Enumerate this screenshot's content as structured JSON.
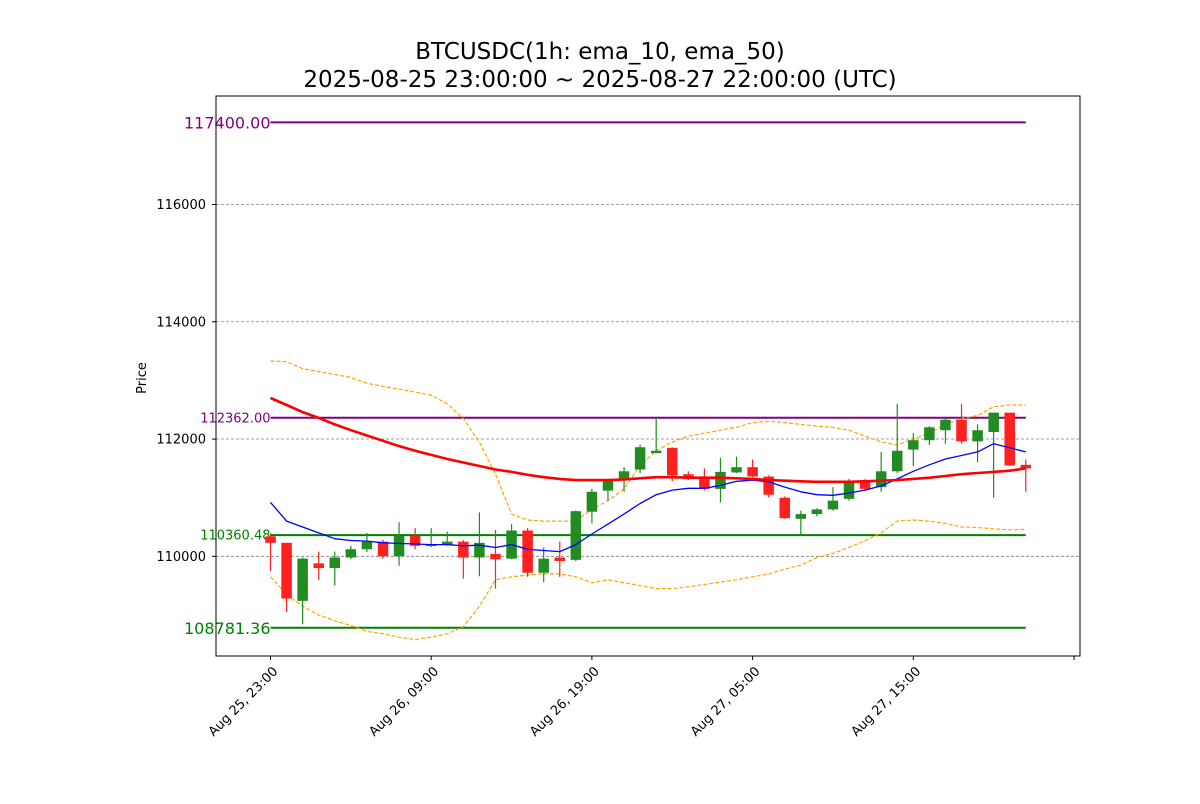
{
  "chart_data": {
    "type": "candlestick",
    "title_line1": "BTCUSDC(1h: ema_10, ema_50)",
    "title_line2": "2025-08-25 23:00:00 ~ 2025-08-27 22:00:00 (UTC)",
    "ylabel": "Price",
    "ylim": [
      108300,
      117850
    ],
    "y_ticks": [
      110000,
      112000,
      114000,
      116000
    ],
    "y_tick_labels": [
      "110000",
      "112000",
      "114000",
      "116000"
    ],
    "x_ticks": [
      0,
      10,
      20,
      30,
      40,
      50
    ],
    "x_tick_labels": [
      "Aug 25, 23:00",
      "Aug 26, 09:00",
      "Aug 26, 19:00",
      "Aug 27, 05:00",
      "Aug 27, 15:00",
      ""
    ],
    "grid": "horizontal dashed",
    "colors": {
      "up": "#228b22",
      "down": "#ff2020",
      "ema_10": "#0000ff",
      "ema_50": "#ff0000",
      "band": "#ffa500",
      "resistance": "#800080",
      "support": "#008000"
    },
    "candles": [
      {
        "t": 0,
        "o": 110340,
        "h": 110400,
        "l": 109750,
        "c": 110230
      },
      {
        "t": 1,
        "o": 110230,
        "h": 110230,
        "l": 109050,
        "c": 109280
      },
      {
        "t": 2,
        "o": 109240,
        "h": 109980,
        "l": 108840,
        "c": 109960
      },
      {
        "t": 3,
        "o": 109880,
        "h": 110080,
        "l": 109600,
        "c": 109800
      },
      {
        "t": 4,
        "o": 109800,
        "h": 110080,
        "l": 109500,
        "c": 109980
      },
      {
        "t": 5,
        "o": 109980,
        "h": 110180,
        "l": 109950,
        "c": 110120
      },
      {
        "t": 6,
        "o": 110120,
        "h": 110400,
        "l": 110070,
        "c": 110250
      },
      {
        "t": 7,
        "o": 110250,
        "h": 110280,
        "l": 109960,
        "c": 110000
      },
      {
        "t": 8,
        "o": 110000,
        "h": 110580,
        "l": 109840,
        "c": 110350
      },
      {
        "t": 9,
        "o": 110350,
        "h": 110480,
        "l": 110120,
        "c": 110180
      },
      {
        "t": 10,
        "o": 110180,
        "h": 110480,
        "l": 110160,
        "c": 110200
      },
      {
        "t": 11,
        "o": 110200,
        "h": 110420,
        "l": 110180,
        "c": 110250
      },
      {
        "t": 12,
        "o": 110250,
        "h": 110280,
        "l": 109620,
        "c": 109980
      },
      {
        "t": 13,
        "o": 109980,
        "h": 110750,
        "l": 109660,
        "c": 110230
      },
      {
        "t": 14,
        "o": 110040,
        "h": 110450,
        "l": 109450,
        "c": 109950
      },
      {
        "t": 15,
        "o": 109960,
        "h": 110550,
        "l": 109950,
        "c": 110440
      },
      {
        "t": 16,
        "o": 110440,
        "h": 110480,
        "l": 109650,
        "c": 109720
      },
      {
        "t": 17,
        "o": 109720,
        "h": 110150,
        "l": 109560,
        "c": 109960
      },
      {
        "t": 18,
        "o": 109980,
        "h": 110250,
        "l": 109650,
        "c": 109920
      },
      {
        "t": 19,
        "o": 109940,
        "h": 110780,
        "l": 109920,
        "c": 110770
      },
      {
        "t": 20,
        "o": 110760,
        "h": 111150,
        "l": 110560,
        "c": 111100
      },
      {
        "t": 21,
        "o": 111120,
        "h": 111320,
        "l": 110950,
        "c": 111300
      },
      {
        "t": 22,
        "o": 111300,
        "h": 111520,
        "l": 111100,
        "c": 111450
      },
      {
        "t": 23,
        "o": 111480,
        "h": 111900,
        "l": 111420,
        "c": 111860
      },
      {
        "t": 24,
        "o": 111760,
        "h": 112360,
        "l": 111760,
        "c": 111800
      },
      {
        "t": 25,
        "o": 111850,
        "h": 111860,
        "l": 111280,
        "c": 111380
      },
      {
        "t": 26,
        "o": 111400,
        "h": 111450,
        "l": 111300,
        "c": 111330
      },
      {
        "t": 27,
        "o": 111330,
        "h": 111500,
        "l": 111120,
        "c": 111150
      },
      {
        "t": 28,
        "o": 111150,
        "h": 111680,
        "l": 110920,
        "c": 111440
      },
      {
        "t": 29,
        "o": 111430,
        "h": 111700,
        "l": 111420,
        "c": 111520
      },
      {
        "t": 30,
        "o": 111520,
        "h": 111650,
        "l": 111350,
        "c": 111360
      },
      {
        "t": 31,
        "o": 111360,
        "h": 111380,
        "l": 111010,
        "c": 111050
      },
      {
        "t": 32,
        "o": 111000,
        "h": 111020,
        "l": 110640,
        "c": 110650
      },
      {
        "t": 33,
        "o": 110640,
        "h": 110780,
        "l": 110380,
        "c": 110720
      },
      {
        "t": 34,
        "o": 110720,
        "h": 110820,
        "l": 110680,
        "c": 110800
      },
      {
        "t": 35,
        "o": 110800,
        "h": 111180,
        "l": 110780,
        "c": 110950
      },
      {
        "t": 36,
        "o": 110980,
        "h": 111320,
        "l": 110950,
        "c": 111280
      },
      {
        "t": 37,
        "o": 111300,
        "h": 111320,
        "l": 111120,
        "c": 111150
      },
      {
        "t": 38,
        "o": 111180,
        "h": 111780,
        "l": 111100,
        "c": 111450
      },
      {
        "t": 39,
        "o": 111450,
        "h": 112600,
        "l": 111420,
        "c": 111800
      },
      {
        "t": 40,
        "o": 111820,
        "h": 112100,
        "l": 111540,
        "c": 111980
      },
      {
        "t": 41,
        "o": 111980,
        "h": 112220,
        "l": 111900,
        "c": 112200
      },
      {
        "t": 42,
        "o": 112150,
        "h": 112350,
        "l": 111920,
        "c": 112330
      },
      {
        "t": 43,
        "o": 112330,
        "h": 112600,
        "l": 111920,
        "c": 111960
      },
      {
        "t": 44,
        "o": 111960,
        "h": 112250,
        "l": 111600,
        "c": 112150
      },
      {
        "t": 45,
        "o": 112120,
        "h": 112450,
        "l": 111000,
        "c": 112450
      },
      {
        "t": 46,
        "o": 112450,
        "h": 112450,
        "l": 111540,
        "c": 111550
      },
      {
        "t": 47,
        "o": 111560,
        "h": 111650,
        "l": 111100,
        "c": 111500
      }
    ],
    "series": [
      {
        "name": "ema_10",
        "x": [
          0,
          1,
          2,
          3,
          4,
          5,
          6,
          7,
          8,
          9,
          10,
          11,
          12,
          13,
          14,
          15,
          16,
          17,
          18,
          19,
          20,
          21,
          22,
          23,
          24,
          25,
          26,
          27,
          28,
          29,
          30,
          31,
          32,
          33,
          34,
          35,
          36,
          37,
          38,
          39,
          40,
          41,
          42,
          43,
          44,
          45,
          46,
          47
        ],
        "values": [
          110920,
          110600,
          110500,
          110400,
          110300,
          110270,
          110260,
          110230,
          110220,
          110210,
          110200,
          110200,
          110180,
          110190,
          110150,
          110200,
          110120,
          110100,
          110080,
          110200,
          110380,
          110550,
          110720,
          110900,
          111050,
          111130,
          111160,
          111160,
          111210,
          111280,
          111300,
          111270,
          111180,
          111100,
          111050,
          111040,
          111080,
          111130,
          111200,
          111320,
          111450,
          111560,
          111660,
          111720,
          111780,
          111920,
          111850,
          111780
        ]
      },
      {
        "name": "ema_50",
        "x": [
          0,
          1,
          2,
          3,
          4,
          5,
          6,
          7,
          8,
          9,
          10,
          11,
          12,
          13,
          14,
          15,
          16,
          17,
          18,
          19,
          20,
          21,
          22,
          23,
          24,
          25,
          26,
          27,
          28,
          29,
          30,
          31,
          32,
          33,
          34,
          35,
          36,
          37,
          38,
          39,
          40,
          41,
          42,
          43,
          44,
          45,
          46,
          47
        ],
        "values": [
          112700,
          112580,
          112460,
          112360,
          112250,
          112150,
          112060,
          111970,
          111880,
          111800,
          111730,
          111660,
          111600,
          111540,
          111480,
          111440,
          111390,
          111350,
          111320,
          111300,
          111300,
          111300,
          111310,
          111330,
          111350,
          111350,
          111340,
          111340,
          111340,
          111330,
          111320,
          111300,
          111290,
          111280,
          111270,
          111270,
          111270,
          111280,
          111290,
          111300,
          111320,
          111340,
          111370,
          111400,
          111420,
          111440,
          111460,
          111500
        ]
      },
      {
        "name": "band_upper",
        "x": [
          0,
          1,
          2,
          3,
          4,
          5,
          6,
          7,
          8,
          9,
          10,
          11,
          12,
          13,
          14,
          15,
          16,
          17,
          18,
          19,
          20,
          21,
          22,
          23,
          24,
          25,
          26,
          27,
          28,
          29,
          30,
          31,
          32,
          33,
          34,
          35,
          36,
          37,
          38,
          39,
          40,
          41,
          42,
          43,
          44,
          45,
          46,
          47
        ],
        "values": [
          113330,
          113320,
          113200,
          113150,
          113100,
          113050,
          112950,
          112900,
          112850,
          112800,
          112750,
          112600,
          112350,
          111950,
          111400,
          110720,
          110620,
          110600,
          110600,
          110600,
          110800,
          110950,
          111150,
          111550,
          111800,
          111950,
          112050,
          112100,
          112150,
          112200,
          112280,
          112300,
          112280,
          112250,
          112220,
          112200,
          112150,
          112050,
          111950,
          111900,
          112000,
          112100,
          112250,
          112350,
          112400,
          112550,
          112580,
          112580
        ]
      },
      {
        "name": "band_lower",
        "x": [
          0,
          1,
          2,
          3,
          4,
          5,
          6,
          7,
          8,
          9,
          10,
          11,
          12,
          13,
          14,
          15,
          16,
          17,
          18,
          19,
          20,
          21,
          22,
          23,
          24,
          25,
          26,
          27,
          28,
          29,
          30,
          31,
          32,
          33,
          34,
          35,
          36,
          37,
          38,
          39,
          40,
          41,
          42,
          43,
          44,
          45,
          46,
          47
        ],
        "values": [
          109650,
          109350,
          109150,
          109000,
          108900,
          108820,
          108720,
          108680,
          108620,
          108580,
          108620,
          108680,
          108800,
          109150,
          109600,
          109650,
          109680,
          109700,
          109700,
          109650,
          109550,
          109600,
          109550,
          109500,
          109450,
          109450,
          109480,
          109520,
          109560,
          109600,
          109650,
          109700,
          109780,
          109850,
          109980,
          110050,
          110150,
          110270,
          110400,
          110600,
          110620,
          110600,
          110560,
          110500,
          110490,
          110470,
          110450,
          110460
        ]
      }
    ],
    "levels": [
      {
        "name": "resistance_top",
        "value": 117400,
        "label": "117400.00",
        "color": "#800080"
      },
      {
        "name": "resistance",
        "value": 112362,
        "label": "112362.00",
        "color": "#800080"
      },
      {
        "name": "support",
        "value": 110360.48,
        "label": "110360.48",
        "color": "#008000"
      },
      {
        "name": "support_bottom",
        "value": 108781.36,
        "label": "108781.36",
        "color": "#008000"
      }
    ]
  }
}
